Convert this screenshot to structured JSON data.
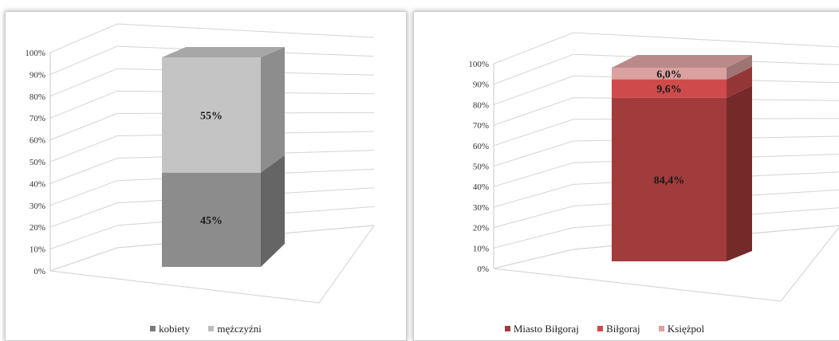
{
  "chart_data": [
    {
      "type": "bar",
      "stacked": true,
      "percent_stacked": true,
      "three_d": true,
      "categories": [
        ""
      ],
      "series": [
        {
          "name": "kobiety",
          "values": [
            45
          ],
          "label": "45%",
          "color": "#8c8c8c"
        },
        {
          "name": "mężczyźni",
          "values": [
            55
          ],
          "label": "55%",
          "color": "#c4c4c4"
        }
      ],
      "y_ticks": [
        "0%",
        "10%",
        "20%",
        "30%",
        "40%",
        "50%",
        "60%",
        "70%",
        "80%",
        "90%",
        "100%"
      ],
      "ylim": [
        0,
        100
      ],
      "grid": true,
      "legend": "bottom"
    },
    {
      "type": "bar",
      "stacked": true,
      "percent_stacked": true,
      "three_d": true,
      "categories": [
        ""
      ],
      "series": [
        {
          "name": "Miasto Biłgoraj",
          "values": [
            84.4
          ],
          "label": "84,4%",
          "color": "#a23b3b"
        },
        {
          "name": "Biłgoraj",
          "values": [
            9.6
          ],
          "label": "9,6%",
          "color": "#cf4b4b"
        },
        {
          "name": "Księżpol",
          "values": [
            6.0
          ],
          "label": "6,0%",
          "color": "#dba1a1"
        }
      ],
      "y_ticks": [
        "0%",
        "10%",
        "20%",
        "30%",
        "40%",
        "50%",
        "60%",
        "70%",
        "80%",
        "90%",
        "100%"
      ],
      "ylim": [
        0,
        100
      ],
      "grid": true,
      "legend": "bottom"
    }
  ]
}
